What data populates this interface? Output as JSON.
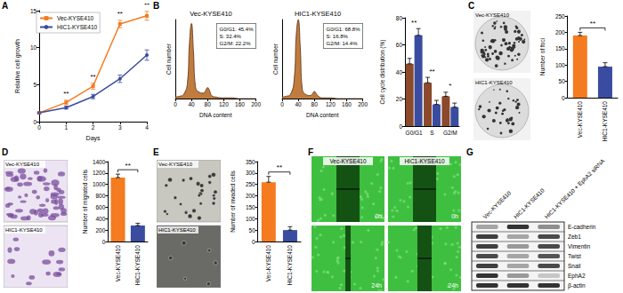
{
  "panel_labels": [
    "A",
    "B",
    "C",
    "D",
    "E",
    "F",
    "G"
  ],
  "chart_data": [
    {
      "type": "line",
      "x_label": "Days",
      "y_label": "Relative cell growth",
      "x": [
        0,
        1,
        2,
        3,
        4
      ],
      "xlim": [
        0,
        4
      ],
      "xticks": [
        0,
        1,
        2,
        3,
        4
      ],
      "ylim": [
        0,
        15
      ],
      "yticks": [
        0,
        5,
        10,
        15
      ],
      "legend": "upper left",
      "series": [
        {
          "name": "Vec-KYSE410",
          "color": "#f47b20",
          "marker": "square",
          "values": [
            1.2,
            2.6,
            4.8,
            13.2,
            14.3
          ],
          "errors": [
            0.1,
            0.3,
            0.4,
            0.5,
            0.6
          ]
        },
        {
          "name": "HIC1-KYSE410",
          "color": "#3a4ca0",
          "marker": "circle",
          "values": [
            1.2,
            1.9,
            3.4,
            5.8,
            9.0
          ],
          "errors": [
            0.1,
            0.2,
            0.3,
            0.5,
            0.7
          ]
        }
      ],
      "annotations": [
        {
          "x": 1,
          "text": "**"
        },
        {
          "x": 2,
          "text": "**"
        },
        {
          "x": 3,
          "text": "**"
        },
        {
          "x": 4,
          "text": "**"
        }
      ]
    },
    {
      "type": "area",
      "title": "Vec-KYSE410",
      "x_label": "DNA content",
      "y_label": "Cell number",
      "x": [
        0,
        10,
        20,
        30,
        35,
        40,
        45,
        50,
        60,
        70,
        75,
        80,
        85,
        90,
        100,
        120,
        140,
        160,
        180,
        200
      ],
      "values": [
        2,
        3,
        5,
        20,
        70,
        95,
        60,
        15,
        8,
        7,
        10,
        14,
        10,
        4,
        2,
        1,
        1,
        0,
        0,
        0
      ],
      "color": "#b5651d",
      "xlim": [
        0,
        200
      ],
      "xticks": [
        0,
        40,
        80,
        120,
        160,
        200
      ],
      "ylim": [
        0,
        100
      ],
      "tick_labels": "x",
      "annotation": [
        "G0/G1: 45.4%",
        "S: 32.4%",
        "G2/M: 22.2%"
      ]
    },
    {
      "type": "area",
      "title": "HIC1-KYSE410",
      "x_label": "DNA content",
      "y_label": "Cell number",
      "x": [
        0,
        10,
        20,
        30,
        35,
        40,
        45,
        50,
        60,
        70,
        75,
        80,
        85,
        90,
        100,
        120,
        140,
        160,
        180,
        200
      ],
      "values": [
        2,
        3,
        5,
        25,
        80,
        100,
        65,
        12,
        5,
        4,
        6,
        9,
        6,
        3,
        1,
        1,
        0,
        0,
        0,
        0
      ],
      "color": "#b5651d",
      "xlim": [
        0,
        200
      ],
      "xticks": [
        0,
        40,
        80,
        120,
        160,
        200
      ],
      "ylim": [
        0,
        100
      ],
      "tick_labels": "x",
      "annotation": [
        "G0/G1: 68.8%",
        "S: 16.8%",
        "G2/M: 14.4%"
      ]
    },
    {
      "type": "bar",
      "y_label": "Cell cycle distribution (%)",
      "categories": [
        "G0/G1",
        "S",
        "G2/M"
      ],
      "ylim": [
        0,
        80
      ],
      "yticks": [
        0,
        20,
        40,
        60,
        80
      ],
      "series": [
        {
          "color": "#8b4a2b",
          "values": [
            46,
            32,
            22
          ],
          "errors": [
            4,
            4,
            3
          ]
        },
        {
          "color": "#3a4ca0",
          "values": [
            67,
            16,
            14
          ],
          "errors": [
            5,
            3,
            3
          ]
        }
      ],
      "annotations": [
        {
          "category": "G0/G1",
          "text": "**"
        },
        {
          "category": "S",
          "text": "**"
        },
        {
          "category": "G2/M",
          "text": "*"
        }
      ]
    },
    {
      "type": "bar",
      "y_label": "Number of foci",
      "categories": [
        "Vec-KYSE410",
        "HIC1-KYSE410"
      ],
      "values": [
        190,
        95
      ],
      "errors": [
        10,
        12
      ],
      "colors": [
        "#f47b20",
        "#3a4ca0"
      ],
      "ylim": [
        0,
        250
      ],
      "yticks": [
        0,
        50,
        100,
        150,
        200,
        250
      ],
      "annotations": [
        {
          "text": "**"
        }
      ]
    },
    {
      "type": "bar",
      "y_label": "Number of migrated cells",
      "categories": [
        "Vec-KYSE410",
        "HIC1-KYSE410"
      ],
      "values": [
        1120,
        280
      ],
      "errors": [
        60,
        40
      ],
      "colors": [
        "#f47b20",
        "#3a4ca0"
      ],
      "ylim": [
        0,
        1400
      ],
      "yticks": [
        0,
        200,
        400,
        600,
        800,
        1000,
        1200,
        1400
      ],
      "annotations": [
        {
          "text": "**"
        }
      ]
    },
    {
      "type": "bar",
      "y_label": "Number of invaded cells",
      "categories": [
        "Vec-KYSE410",
        "HIC1-KYSE410"
      ],
      "values": [
        260,
        50
      ],
      "errors": [
        25,
        15
      ],
      "colors": [
        "#f47b20",
        "#3a4ca0"
      ],
      "ylim": [
        0,
        350
      ],
      "yticks": [
        0,
        50,
        100,
        150,
        200,
        250,
        300,
        350
      ],
      "annotations": [
        {
          "text": "**"
        }
      ]
    }
  ],
  "images": {
    "C": {
      "labels": [
        "Vec-KYSE410",
        "HIC1-KYSE410"
      ]
    },
    "D": {
      "labels": [
        "Vec-KYSE410",
        "HIC1-KYSE410"
      ]
    },
    "E": {
      "labels": [
        "Vec-KYSE410",
        "HIC1-KYSE410"
      ]
    },
    "F": {
      "labels": [
        "Vec-KYSE410",
        "HIC1-KYSE410"
      ],
      "times": [
        "0h",
        "24h"
      ]
    },
    "G": {
      "lanes": [
        "Vec-KYSE410",
        "HIC1-KYSE410",
        "HIC1-KYSE410 + EphA2 siRNA"
      ],
      "proteins": [
        "E-cadherin",
        "Zeb1",
        "Vimentin",
        "Twist",
        "Snail",
        "EphA2",
        "β-actin"
      ],
      "intensity": [
        [
          0.35,
          0.85,
          0.45
        ],
        [
          0.8,
          0.35,
          0.75
        ],
        [
          0.8,
          0.4,
          0.75
        ],
        [
          0.75,
          0.35,
          0.7
        ],
        [
          0.8,
          0.35,
          0.75
        ],
        [
          0.85,
          0.4,
          0.2
        ],
        [
          0.85,
          0.85,
          0.85
        ]
      ]
    }
  }
}
